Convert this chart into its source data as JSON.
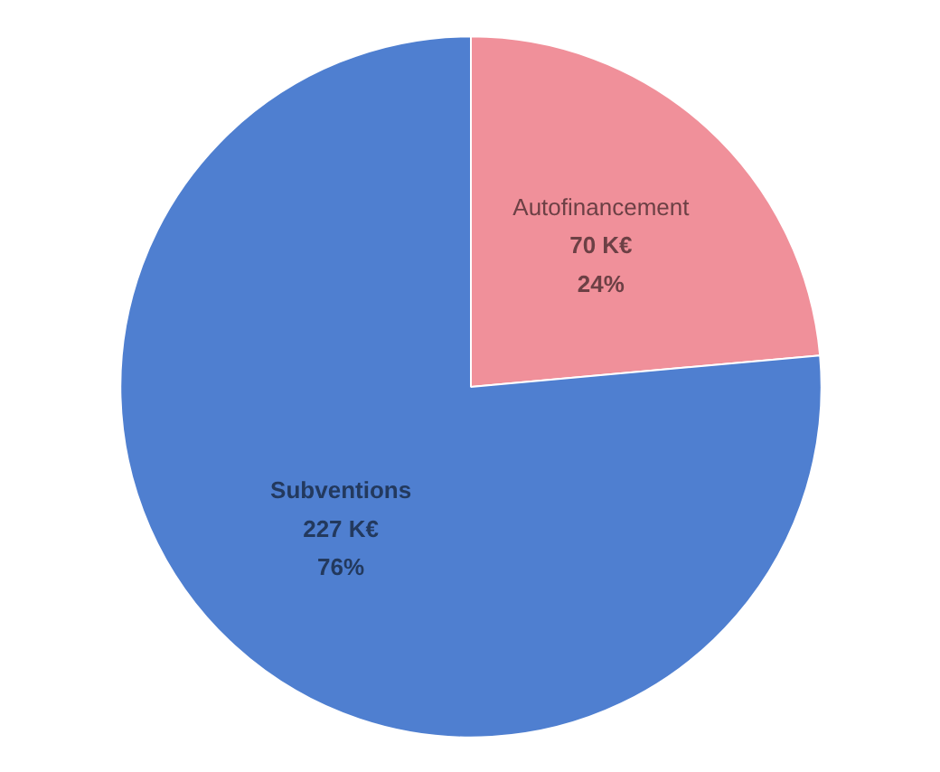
{
  "chart_data": {
    "type": "pie",
    "categories": [
      "Autofinancement",
      "Subventions"
    ],
    "values": [
      70,
      227
    ],
    "colors": [
      "#f0909a",
      "#4f7fd0"
    ],
    "value_labels": [
      "70 K€\n24%",
      "227 K€\n76%"
    ]
  }
}
